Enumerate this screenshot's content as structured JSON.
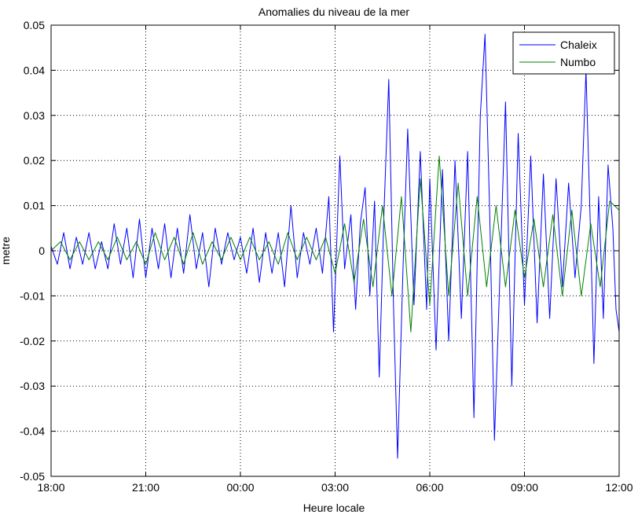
{
  "chart_data": {
    "type": "line",
    "title": "Anomalies du niveau de la mer",
    "xlabel": "Heure locale",
    "ylabel": "metre",
    "x_unit": "hours from 18:00 (local time)",
    "xlim": [
      0,
      18
    ],
    "ylim": [
      -0.05,
      0.05
    ],
    "grid": true,
    "grid_style": "dotted",
    "legend_position": "top-right",
    "x_ticks": [
      {
        "value": 0,
        "label": "18:00"
      },
      {
        "value": 3,
        "label": "21:00"
      },
      {
        "value": 6,
        "label": "00:00"
      },
      {
        "value": 9,
        "label": "03:00"
      },
      {
        "value": 12,
        "label": "06:00"
      },
      {
        "value": 15,
        "label": "09:00"
      },
      {
        "value": 18,
        "label": "12:00"
      }
    ],
    "y_ticks": [
      {
        "value": 0.05,
        "label": "0.05"
      },
      {
        "value": 0.04,
        "label": "0.04"
      },
      {
        "value": 0.03,
        "label": "0.03"
      },
      {
        "value": 0.02,
        "label": "0.02"
      },
      {
        "value": 0.01,
        "label": "0.01"
      },
      {
        "value": 0,
        "label": "0"
      },
      {
        "value": -0.01,
        "label": "-0.01"
      },
      {
        "value": -0.02,
        "label": "-0.02"
      },
      {
        "value": -0.03,
        "label": "-0.03"
      },
      {
        "value": -0.04,
        "label": "-0.04"
      },
      {
        "value": -0.05,
        "label": "-0.05"
      }
    ],
    "series": [
      {
        "name": "Chaleix",
        "color": "#0000ff",
        "points": [
          [
            0.0,
            0.001
          ],
          [
            0.2,
            -0.003
          ],
          [
            0.4,
            0.004
          ],
          [
            0.6,
            -0.004
          ],
          [
            0.8,
            0.003
          ],
          [
            1.0,
            -0.003
          ],
          [
            1.2,
            0.004
          ],
          [
            1.4,
            -0.004
          ],
          [
            1.6,
            0.002
          ],
          [
            1.8,
            -0.004
          ],
          [
            2.0,
            0.006
          ],
          [
            2.2,
            -0.003
          ],
          [
            2.4,
            0.005
          ],
          [
            2.6,
            -0.006
          ],
          [
            2.8,
            0.007
          ],
          [
            3.0,
            -0.006
          ],
          [
            3.2,
            0.005
          ],
          [
            3.4,
            -0.004
          ],
          [
            3.6,
            0.006
          ],
          [
            3.8,
            -0.006
          ],
          [
            4.0,
            0.005
          ],
          [
            4.2,
            -0.005
          ],
          [
            4.4,
            0.008
          ],
          [
            4.6,
            -0.004
          ],
          [
            4.8,
            0.004
          ],
          [
            5.0,
            -0.008
          ],
          [
            5.2,
            0.005
          ],
          [
            5.4,
            -0.003
          ],
          [
            5.6,
            0.004
          ],
          [
            5.8,
            -0.002
          ],
          [
            6.0,
            0.003
          ],
          [
            6.2,
            -0.005
          ],
          [
            6.4,
            0.005
          ],
          [
            6.6,
            -0.007
          ],
          [
            6.8,
            0.004
          ],
          [
            7.0,
            -0.005
          ],
          [
            7.2,
            0.004
          ],
          [
            7.4,
            -0.008
          ],
          [
            7.6,
            0.01
          ],
          [
            7.8,
            -0.006
          ],
          [
            8.0,
            0.004
          ],
          [
            8.2,
            -0.003
          ],
          [
            8.4,
            0.005
          ],
          [
            8.6,
            -0.005
          ],
          [
            8.8,
            0.012
          ],
          [
            8.95,
            -0.018
          ],
          [
            9.15,
            0.021
          ],
          [
            9.3,
            -0.004
          ],
          [
            9.5,
            0.008
          ],
          [
            9.65,
            -0.013
          ],
          [
            9.8,
            0.006
          ],
          [
            9.95,
            0.014
          ],
          [
            10.1,
            -0.01
          ],
          [
            10.25,
            0.011
          ],
          [
            10.4,
            -0.028
          ],
          [
            10.55,
            0.009
          ],
          [
            10.7,
            0.038
          ],
          [
            10.85,
            -0.012
          ],
          [
            10.98,
            -0.046
          ],
          [
            11.15,
            -0.004
          ],
          [
            11.3,
            0.027
          ],
          [
            11.5,
            -0.012
          ],
          [
            11.7,
            0.022
          ],
          [
            11.9,
            -0.013
          ],
          [
            12.0,
            0.016
          ],
          [
            12.2,
            -0.022
          ],
          [
            12.4,
            0.018
          ],
          [
            12.6,
            -0.02
          ],
          [
            12.8,
            0.02
          ],
          [
            13.0,
            -0.015
          ],
          [
            13.2,
            0.022
          ],
          [
            13.4,
            -0.037
          ],
          [
            13.6,
            0.03
          ],
          [
            13.75,
            0.048
          ],
          [
            13.9,
            0.008
          ],
          [
            14.05,
            -0.042
          ],
          [
            14.2,
            -0.01
          ],
          [
            14.4,
            0.033
          ],
          [
            14.6,
            -0.03
          ],
          [
            14.8,
            0.026
          ],
          [
            15.0,
            -0.012
          ],
          [
            15.2,
            0.021
          ],
          [
            15.4,
            -0.016
          ],
          [
            15.6,
            0.017
          ],
          [
            15.8,
            -0.015
          ],
          [
            16.0,
            0.016
          ],
          [
            16.2,
            -0.008
          ],
          [
            16.4,
            0.015
          ],
          [
            16.6,
            -0.006
          ],
          [
            16.8,
            0.01
          ],
          [
            16.95,
            0.04
          ],
          [
            17.1,
            0.002
          ],
          [
            17.2,
            -0.025
          ],
          [
            17.35,
            0.012
          ],
          [
            17.5,
            -0.015
          ],
          [
            17.65,
            0.019
          ],
          [
            17.8,
            0.005
          ],
          [
            17.9,
            -0.013
          ],
          [
            18.0,
            -0.018
          ]
        ]
      },
      {
        "name": "Numbo",
        "color": "#008000",
        "points": [
          [
            0.0,
            0.0
          ],
          [
            0.3,
            0.002
          ],
          [
            0.6,
            -0.002
          ],
          [
            0.9,
            0.002
          ],
          [
            1.2,
            -0.002
          ],
          [
            1.5,
            0.002
          ],
          [
            1.8,
            -0.002
          ],
          [
            2.1,
            0.003
          ],
          [
            2.4,
            -0.002
          ],
          [
            2.7,
            0.002
          ],
          [
            3.0,
            -0.003
          ],
          [
            3.3,
            0.004
          ],
          [
            3.6,
            -0.002
          ],
          [
            3.9,
            0.003
          ],
          [
            4.2,
            -0.003
          ],
          [
            4.5,
            0.004
          ],
          [
            4.8,
            -0.003
          ],
          [
            5.1,
            0.002
          ],
          [
            5.4,
            -0.002
          ],
          [
            5.7,
            0.003
          ],
          [
            6.0,
            -0.002
          ],
          [
            6.3,
            0.003
          ],
          [
            6.6,
            -0.002
          ],
          [
            6.9,
            0.002
          ],
          [
            7.2,
            -0.003
          ],
          [
            7.5,
            0.004
          ],
          [
            7.8,
            -0.002
          ],
          [
            8.1,
            0.003
          ],
          [
            8.4,
            -0.002
          ],
          [
            8.7,
            0.003
          ],
          [
            9.0,
            -0.005
          ],
          [
            9.3,
            0.006
          ],
          [
            9.6,
            -0.007
          ],
          [
            9.9,
            0.007
          ],
          [
            10.2,
            -0.008
          ],
          [
            10.5,
            0.01
          ],
          [
            10.8,
            -0.01
          ],
          [
            11.1,
            0.012
          ],
          [
            11.4,
            -0.018
          ],
          [
            11.7,
            0.016
          ],
          [
            12.0,
            -0.012
          ],
          [
            12.3,
            0.021
          ],
          [
            12.6,
            -0.01
          ],
          [
            12.9,
            0.015
          ],
          [
            13.2,
            -0.01
          ],
          [
            13.5,
            0.012
          ],
          [
            13.8,
            -0.008
          ],
          [
            14.1,
            0.01
          ],
          [
            14.4,
            -0.008
          ],
          [
            14.7,
            0.009
          ],
          [
            15.0,
            -0.006
          ],
          [
            15.3,
            0.007
          ],
          [
            15.6,
            -0.008
          ],
          [
            15.9,
            0.008
          ],
          [
            16.2,
            -0.01
          ],
          [
            16.5,
            0.009
          ],
          [
            16.8,
            -0.01
          ],
          [
            17.1,
            0.006
          ],
          [
            17.4,
            -0.008
          ],
          [
            17.7,
            0.011
          ],
          [
            18.0,
            0.009
          ]
        ]
      }
    ]
  }
}
